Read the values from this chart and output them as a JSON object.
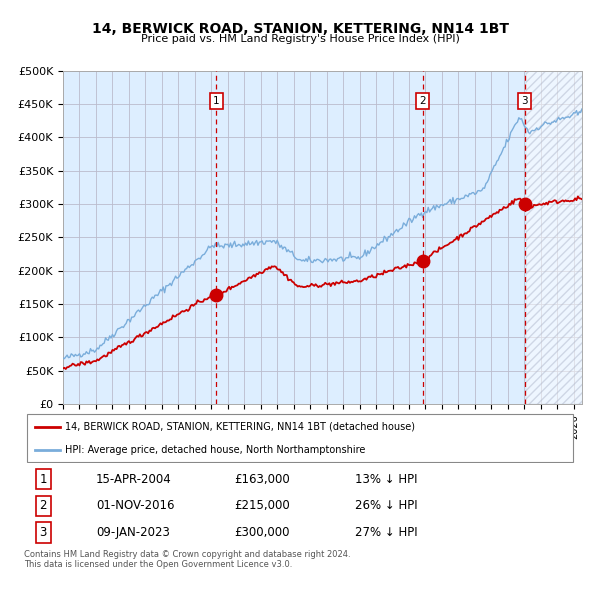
{
  "title": "14, BERWICK ROAD, STANION, KETTERING, NN14 1BT",
  "subtitle": "Price paid vs. HM Land Registry's House Price Index (HPI)",
  "ylim": [
    0,
    500000
  ],
  "yticks": [
    0,
    50000,
    100000,
    150000,
    200000,
    250000,
    300000,
    350000,
    400000,
    450000,
    500000
  ],
  "ytick_labels": [
    "£0",
    "£50K",
    "£100K",
    "£150K",
    "£200K",
    "£250K",
    "£300K",
    "£350K",
    "£400K",
    "£450K",
    "£500K"
  ],
  "hpi_color": "#7aaddb",
  "price_color": "#cc0000",
  "bg_color": "#ddeeff",
  "sale_dates": [
    2004.29,
    2016.83,
    2023.03
  ],
  "sale_prices": [
    163000,
    215000,
    300000
  ],
  "sale_labels": [
    "1",
    "2",
    "3"
  ],
  "legend_line1": "14, BERWICK ROAD, STANION, KETTERING, NN14 1BT (detached house)",
  "legend_line2": "HPI: Average price, detached house, North Northamptonshire",
  "table_entries": [
    [
      "1",
      "15-APR-2004",
      "£163,000",
      "13% ↓ HPI"
    ],
    [
      "2",
      "01-NOV-2016",
      "£215,000",
      "26% ↓ HPI"
    ],
    [
      "3",
      "09-JAN-2023",
      "£300,000",
      "27% ↓ HPI"
    ]
  ],
  "footnote": "Contains HM Land Registry data © Crown copyright and database right 2024.\nThis data is licensed under the Open Government Licence v3.0.",
  "xlim_start": 1995.0,
  "xlim_end": 2026.5,
  "last_sale_date": 2023.03
}
